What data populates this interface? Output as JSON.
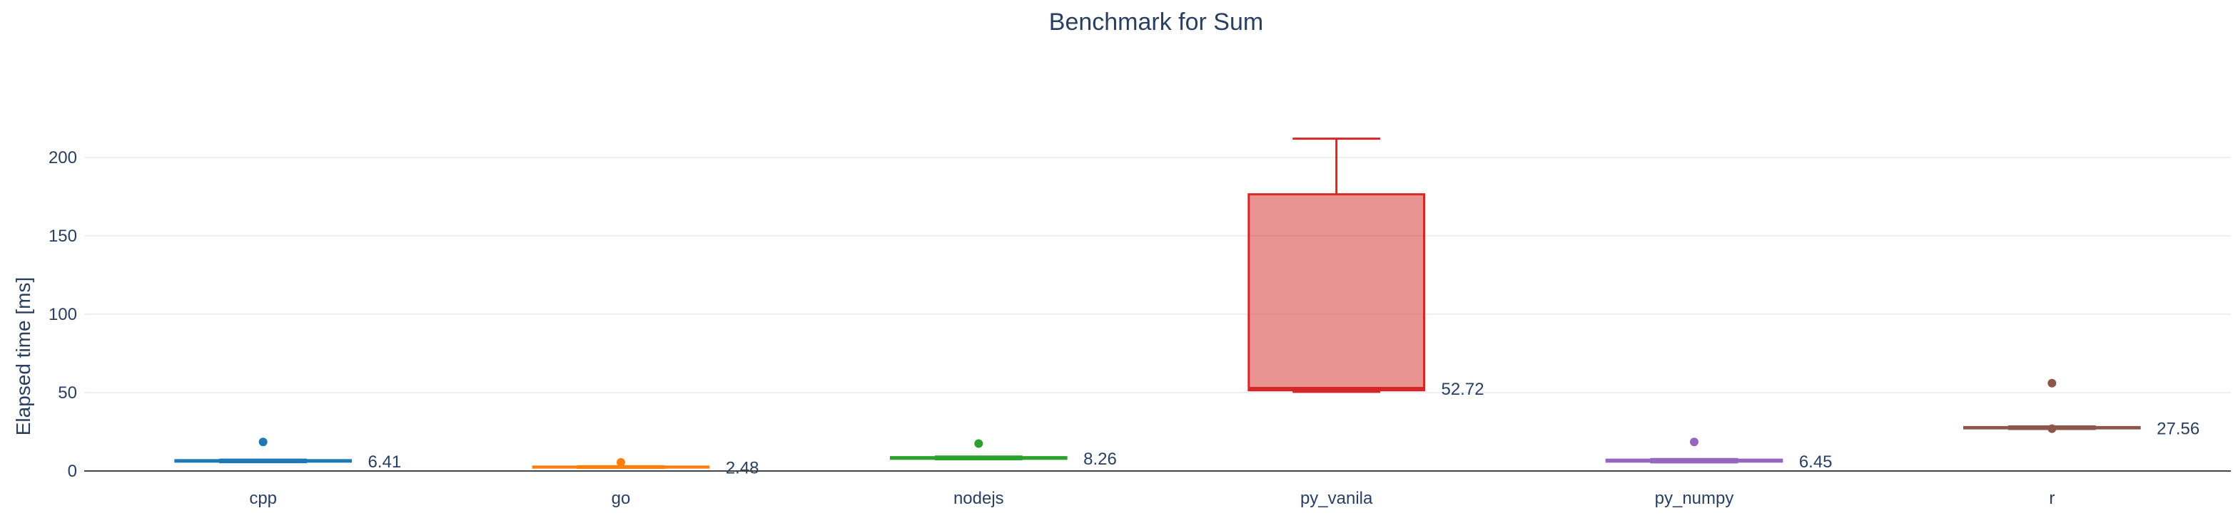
{
  "chart_data": {
    "type": "box",
    "title": "Benchmark for Sum",
    "xlabel": "",
    "ylabel": "Elapsed time [ms]",
    "ylim": [
      0,
      230
    ],
    "yticks": [
      0,
      50,
      100,
      150,
      200
    ],
    "grid": true,
    "categories": [
      "cpp",
      "go",
      "nodejs",
      "py_vanila",
      "py_numpy",
      "r"
    ],
    "series": [
      {
        "category": "cpp",
        "color": "#1f77b4",
        "q1": 6.0,
        "median": 6.41,
        "q3": 6.9,
        "lowerfence": 5.6,
        "upperfence": 7.2,
        "outliers": [
          18.5
        ],
        "median_label": "6.41"
      },
      {
        "category": "go",
        "color": "#ff7f0e",
        "q1": 2.2,
        "median": 2.48,
        "q3": 2.8,
        "lowerfence": 2.0,
        "upperfence": 3.0,
        "outliers": [
          5.5
        ],
        "median_label": "2.48"
      },
      {
        "category": "nodejs",
        "color": "#2ca02c",
        "q1": 7.8,
        "median": 8.26,
        "q3": 8.8,
        "lowerfence": 7.5,
        "upperfence": 9.2,
        "outliers": [
          17.5
        ],
        "median_label": "8.26"
      },
      {
        "category": "py_vanila",
        "color": "#d62728",
        "q1": 51.5,
        "median": 52.72,
        "q3": 176.5,
        "lowerfence": 50.5,
        "upperfence": 212.0,
        "outliers": [],
        "median_label": "52.72"
      },
      {
        "category": "py_numpy",
        "color": "#9467bd",
        "q1": 6.0,
        "median": 6.45,
        "q3": 7.2,
        "lowerfence": 5.5,
        "upperfence": 7.6,
        "outliers": [
          18.5
        ],
        "median_label": "6.45"
      },
      {
        "category": "r",
        "color": "#8c564b",
        "q1": 27.2,
        "median": 27.56,
        "q3": 28.0,
        "lowerfence": 26.8,
        "upperfence": 28.4,
        "outliers": [
          56.0,
          27.0
        ],
        "median_label": "27.56"
      }
    ]
  }
}
